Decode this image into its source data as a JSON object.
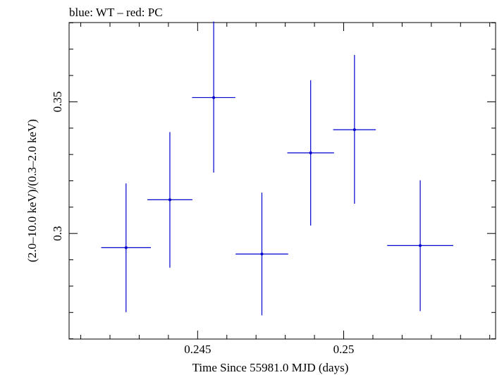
{
  "chart_data": {
    "type": "scatter",
    "title": "blue: WT – red: PC",
    "xlabel": "Time Since 55981.0 MJD (days)",
    "ylabel": "(2.0–10.0 keV)/(0.3–2.0 keV)",
    "xlim": [
      0.2406,
      0.2552
    ],
    "ylim": [
      0.2599,
      0.3801
    ],
    "x_ticks": [
      {
        "value": 0.245,
        "label": "0.245"
      },
      {
        "value": 0.25,
        "label": "0.25"
      }
    ],
    "y_ticks": [
      {
        "value": 0.3,
        "label": "0.3"
      },
      {
        "value": 0.35,
        "label": "0.35"
      }
    ],
    "series": [
      {
        "color": "#0000d0",
        "points": [
          {
            "x": 0.24255,
            "y": 0.2946,
            "xerr": 0.00085,
            "yerr_lo": 0.0245,
            "yerr_hi": 0.0244
          },
          {
            "x": 0.24405,
            "y": 0.3128,
            "xerr": 0.00077,
            "yerr_lo": 0.0258,
            "yerr_hi": 0.0257
          },
          {
            "x": 0.24555,
            "y": 0.3516,
            "xerr": 0.00074,
            "yerr_lo": 0.0285,
            "yerr_hi": 0.0289
          },
          {
            "x": 0.2472,
            "y": 0.2922,
            "xerr": 0.0009,
            "yerr_lo": 0.0233,
            "yerr_hi": 0.0233
          },
          {
            "x": 0.24887,
            "y": 0.3306,
            "xerr": 0.0008,
            "yerr_lo": 0.0276,
            "yerr_hi": 0.0276
          },
          {
            "x": 0.25037,
            "y": 0.3394,
            "xerr": 0.00073,
            "yerr_lo": 0.0281,
            "yerr_hi": 0.0284
          },
          {
            "x": 0.25262,
            "y": 0.2954,
            "xerr": 0.00113,
            "yerr_lo": 0.0249,
            "yerr_hi": 0.0248
          }
        ]
      }
    ]
  }
}
